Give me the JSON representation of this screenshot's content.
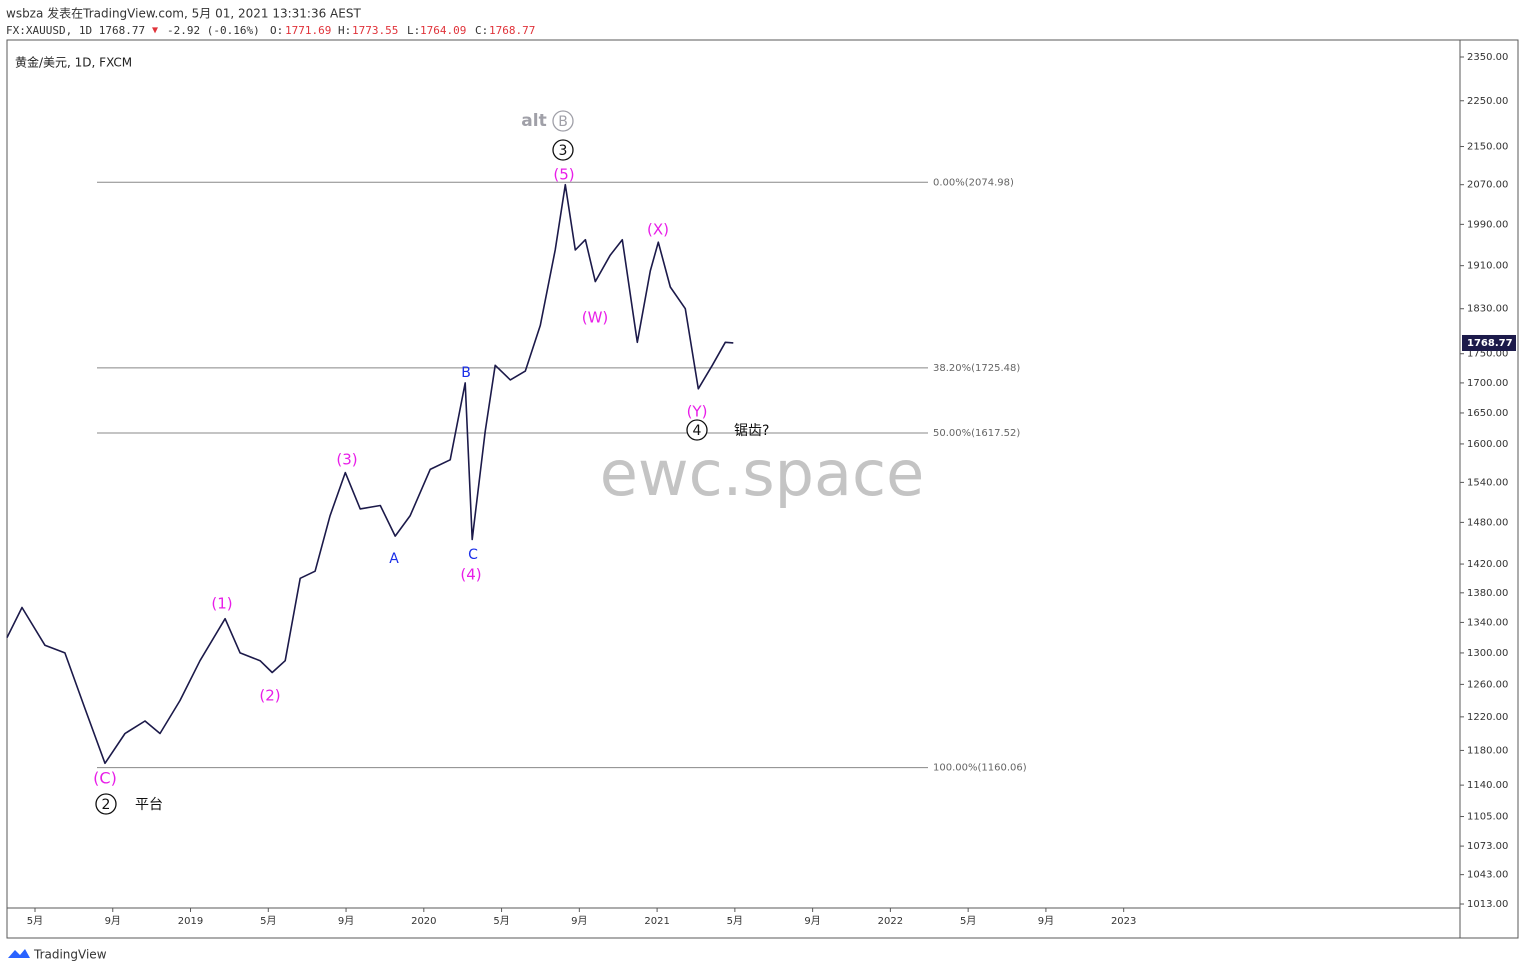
{
  "header": {
    "author_line": "wsbza 发表在TradingView.com, 5月 01, 2021 13:31:36 AEST",
    "symbol_line": "FX:XAUUSD, 1D 1768.77",
    "arrow": "▼",
    "change": "-2.92 (-0.16%)",
    "open_label": "O:",
    "open": "1771.69",
    "high_label": "H:",
    "high": "1773.55",
    "low_label": "L:",
    "low": "1764.09",
    "close_label": "C:",
    "close": "1768.77"
  },
  "chart_data": {
    "type": "line",
    "title": "黄金/美元, 1D, FXCM",
    "watermark": "ewc.space",
    "log_scale": true,
    "xlim": [
      -1.44,
      73.3
    ],
    "ylim": [
      1009,
      2390
    ],
    "xticks": [
      {
        "value": 0,
        "label": "5月"
      },
      {
        "value": 4,
        "label": "9月"
      },
      {
        "value": 8,
        "label": "2019"
      },
      {
        "value": 12,
        "label": "5月"
      },
      {
        "value": 16,
        "label": "9月"
      },
      {
        "value": 20,
        "label": "2020"
      },
      {
        "value": 24,
        "label": "5月"
      },
      {
        "value": 28,
        "label": "9月"
      },
      {
        "value": 32,
        "label": "2021"
      },
      {
        "value": 36,
        "label": "5月"
      },
      {
        "value": 40,
        "label": "9月"
      },
      {
        "value": 44,
        "label": "2022"
      },
      {
        "value": 48,
        "label": "5月"
      },
      {
        "value": 52,
        "label": "9月"
      },
      {
        "value": 56,
        "label": "2023"
      }
    ],
    "yticks": [
      {
        "value": 2350,
        "label": "2350.00"
      },
      {
        "value": 2250,
        "label": "2250.00"
      },
      {
        "value": 2150,
        "label": "2150.00"
      },
      {
        "value": 2070,
        "label": "2070.00"
      },
      {
        "value": 1990,
        "label": "1990.00"
      },
      {
        "value": 1910,
        "label": "1910.00"
      },
      {
        "value": 1830,
        "label": "1830.00"
      },
      {
        "value": 1750,
        "label": "1750.00"
      },
      {
        "value": 1700,
        "label": "1700.00"
      },
      {
        "value": 1650,
        "label": "1650.00"
      },
      {
        "value": 1600,
        "label": "1600.00"
      },
      {
        "value": 1540,
        "label": "1540.00"
      },
      {
        "value": 1480,
        "label": "1480.00"
      },
      {
        "value": 1420,
        "label": "1420.00"
      },
      {
        "value": 1380,
        "label": "1380.00"
      },
      {
        "value": 1340,
        "label": "1340.00"
      },
      {
        "value": 1300,
        "label": "1300.00"
      },
      {
        "value": 1260,
        "label": "1260.00"
      },
      {
        "value": 1220,
        "label": "1220.00"
      },
      {
        "value": 1180,
        "label": "1180.00"
      },
      {
        "value": 1140,
        "label": "1140.00"
      },
      {
        "value": 1105,
        "label": "1105.00"
      },
      {
        "value": 1073,
        "label": "1073.00"
      },
      {
        "value": 1043,
        "label": "1043.00"
      },
      {
        "value": 1013,
        "label": "1013.00"
      }
    ],
    "series": [
      {
        "color": "#1c1a4a",
        "x": [
          -1.44,
          -0.67,
          0.51,
          1.54,
          2.57,
          3.6,
          4.63,
          5.66,
          6.43,
          7.46,
          8.49,
          9.78,
          10.55,
          11.58,
          12.2,
          12.87,
          13.64,
          14.41,
          15.18,
          15.96,
          16.73,
          17.76,
          18.53,
          19.3,
          20.33,
          21.36,
          22.13,
          22.49,
          23.16,
          23.67,
          24.45,
          25.22,
          25.99,
          26.76,
          27.28,
          27.79,
          28.31,
          28.82,
          29.59,
          30.21,
          30.98,
          31.65,
          32.06,
          32.68,
          33.45,
          34.12,
          34.84,
          35.51,
          35.92
        ],
        "values": [
          1320,
          1360,
          1310,
          1300,
          1230,
          1165,
          1200,
          1215,
          1200,
          1240,
          1290,
          1345,
          1300,
          1290,
          1275,
          1290,
          1400,
          1410,
          1490,
          1555,
          1500,
          1505,
          1460,
          1490,
          1560,
          1575,
          1700,
          1455,
          1620,
          1730,
          1705,
          1720,
          1800,
          1940,
          2070,
          1940,
          1960,
          1880,
          1930,
          1960,
          1770,
          1900,
          1955,
          1870,
          1830,
          1690,
          1730,
          1770,
          1769
        ]
      }
    ],
    "last_price": 1768.77,
    "fib_levels": [
      {
        "value": 2074.98,
        "label": "0.00%(2074.98)"
      },
      {
        "value": 1725.48,
        "label": "38.20%(1725.48)"
      },
      {
        "value": 1617.52,
        "label": "50.00%(1617.52)"
      },
      {
        "value": 1160.06,
        "label": "100.00%(1160.06)"
      }
    ],
    "annotations": [
      {
        "text": "(C)",
        "color": "#e81ee8"
      },
      {
        "text": "2",
        "color": "#111111"
      },
      {
        "text": "平台",
        "color": "#111111"
      },
      {
        "text": "(1)",
        "color": "#e81ee8"
      },
      {
        "text": "(2)",
        "color": "#e81ee8"
      },
      {
        "text": "(3)",
        "color": "#e81ee8"
      },
      {
        "text": "A",
        "color": "#1a2ee8"
      },
      {
        "text": "B",
        "color": "#1a2ee8"
      },
      {
        "text": "C",
        "color": "#1a2ee8"
      },
      {
        "text": "(4)",
        "color": "#e81ee8"
      },
      {
        "text": "(5)",
        "color": "#e81ee8"
      },
      {
        "text": "3",
        "color": "#111111"
      },
      {
        "text": "alt",
        "color": "#a0a0a8"
      },
      {
        "text": "B",
        "color": "#a0a0a8"
      },
      {
        "text": "(W)",
        "color": "#e81ee8"
      },
      {
        "text": "(X)",
        "color": "#e81ee8"
      },
      {
        "text": "(Y)",
        "color": "#e81ee8"
      },
      {
        "text": "4",
        "color": "#111111"
      },
      {
        "text": "锯齿?",
        "color": "#111111"
      }
    ]
  },
  "footer": {
    "logo": "TradingView"
  }
}
